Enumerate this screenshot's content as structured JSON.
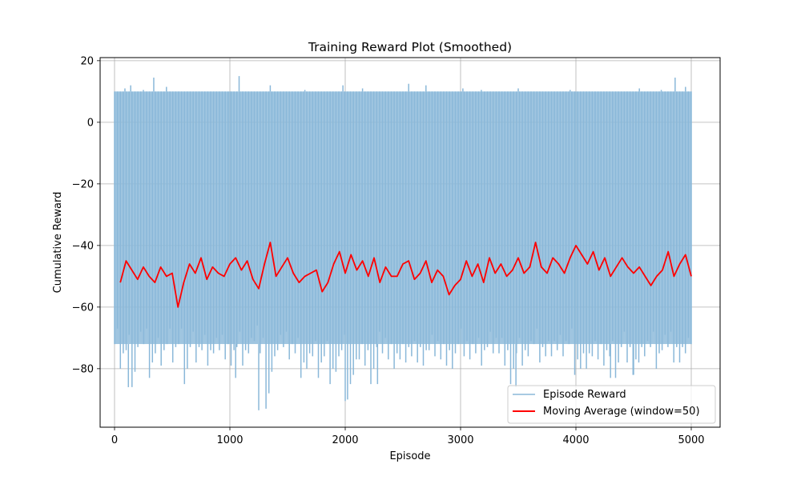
{
  "chart_data": {
    "type": "line",
    "title": "Training Reward Plot (Smoothed)",
    "xlabel": "Episode",
    "ylabel": "Cumulative Reward",
    "xlim": [
      -125,
      5250
    ],
    "ylim": [
      -99,
      21
    ],
    "xticks": [
      0,
      1000,
      2000,
      3000,
      4000,
      5000
    ],
    "yticks": [
      -80,
      -60,
      -40,
      -20,
      0,
      20
    ],
    "grid": true,
    "legend_position": "lower-right",
    "series": [
      {
        "name": "Episode Reward",
        "color": "#8ab8d9",
        "x_range": [
          0,
          5000
        ],
        "upper_values": [
          10,
          10,
          10,
          10,
          10,
          10,
          10,
          10,
          10,
          10,
          10,
          10,
          10,
          10,
          10,
          10,
          10,
          10,
          10,
          10,
          10,
          10,
          10,
          10,
          10,
          10,
          10,
          10,
          10,
          10,
          10,
          10,
          10,
          10,
          10,
          10,
          10,
          10,
          10,
          10,
          10,
          10,
          10,
          10,
          10,
          10,
          10,
          10,
          10,
          10,
          10,
          10,
          10,
          10,
          10,
          10,
          10,
          10,
          10,
          10,
          10,
          10,
          10,
          10,
          10,
          10,
          10,
          10,
          10,
          10,
          10,
          10,
          10,
          10,
          10,
          10,
          10,
          10,
          10,
          10,
          10,
          10,
          10,
          10,
          10,
          10,
          10,
          10,
          10,
          10,
          10,
          10,
          10,
          10,
          10,
          10,
          10,
          10,
          10,
          10
        ],
        "lower_values": [
          -72,
          -80,
          -74,
          -86,
          -73,
          -72,
          -83,
          -75,
          -79,
          -72,
          -78,
          -72,
          -85,
          -73,
          -78,
          -74,
          -79,
          -75,
          -74,
          -77,
          -79,
          -73,
          -79,
          -75,
          -71,
          -75,
          -93,
          -81,
          -74,
          -73,
          -77,
          -75,
          -83,
          -80,
          -76,
          -83,
          -76,
          -85,
          -81,
          -74,
          -90,
          -82,
          -77,
          -79,
          -85,
          -73,
          -75,
          -77,
          -80,
          -77,
          -78,
          -76,
          -78,
          -79,
          -74,
          -76,
          -77,
          -79,
          -80,
          -72,
          -76,
          -77,
          -75,
          -79,
          -73,
          -75,
          -75,
          -79,
          -85,
          -75,
          -79,
          -76,
          -72,
          -78,
          -76,
          -76,
          -74,
          -76,
          -72,
          -82,
          -80,
          -80,
          -76,
          -77,
          -79,
          -76,
          -83,
          -73,
          -78,
          -82,
          -78,
          -76,
          -73,
          -80,
          -74,
          -73,
          -78,
          -78,
          -75,
          -72
        ],
        "spikes": [
          [
            90,
            11
          ],
          [
            140,
            12
          ],
          [
            250,
            10.5
          ],
          [
            340,
            14.5
          ],
          [
            450,
            11.5
          ],
          [
            1080,
            15
          ],
          [
            1350,
            12
          ],
          [
            1650,
            10.5
          ],
          [
            1980,
            12
          ],
          [
            2150,
            11
          ],
          [
            2550,
            12.5
          ],
          [
            2700,
            12
          ],
          [
            3020,
            11
          ],
          [
            3180,
            10.5
          ],
          [
            3500,
            11
          ],
          [
            3950,
            10.5
          ],
          [
            4550,
            11
          ],
          [
            4740,
            10.5
          ],
          [
            4860,
            14.5
          ],
          [
            4950,
            11.5
          ]
        ],
        "dips": [
          [
            120,
            -86
          ],
          [
            1050,
            -83
          ],
          [
            1250,
            -93.5
          ],
          [
            2000,
            -90.5
          ],
          [
            2280,
            -85
          ],
          [
            3480,
            -86
          ],
          [
            4300,
            -83
          ],
          [
            4500,
            -82
          ]
        ]
      },
      {
        "name": "Moving Average (window=50)",
        "color": "#ff0000",
        "x": [
          50,
          100,
          150,
          200,
          250,
          300,
          350,
          400,
          450,
          500,
          550,
          600,
          650,
          700,
          750,
          800,
          850,
          900,
          950,
          1000,
          1050,
          1100,
          1150,
          1200,
          1250,
          1300,
          1350,
          1400,
          1450,
          1500,
          1550,
          1600,
          1650,
          1700,
          1750,
          1800,
          1850,
          1900,
          1950,
          2000,
          2050,
          2100,
          2150,
          2200,
          2250,
          2300,
          2350,
          2400,
          2450,
          2500,
          2550,
          2600,
          2650,
          2700,
          2750,
          2800,
          2850,
          2900,
          2950,
          3000,
          3050,
          3100,
          3150,
          3200,
          3250,
          3300,
          3350,
          3400,
          3450,
          3500,
          3550,
          3600,
          3650,
          3700,
          3750,
          3800,
          3850,
          3900,
          3950,
          4000,
          4050,
          4100,
          4150,
          4200,
          4250,
          4300,
          4350,
          4400,
          4450,
          4500,
          4550,
          4600,
          4650,
          4700,
          4750,
          4800,
          4850,
          4900,
          4950,
          5000
        ],
        "values": [
          -52,
          -45,
          -48,
          -51,
          -47,
          -50,
          -52,
          -47,
          -50,
          -49,
          -60,
          -52,
          -46,
          -49,
          -44,
          -51,
          -47,
          -49,
          -50,
          -46,
          -44,
          -48,
          -45,
          -51,
          -54,
          -46,
          -39,
          -50,
          -47,
          -44,
          -49,
          -52,
          -50,
          -49,
          -48,
          -55,
          -52,
          -46,
          -42,
          -49,
          -43,
          -48,
          -45,
          -50,
          -44,
          -52,
          -47,
          -50,
          -50,
          -46,
          -45,
          -51,
          -49,
          -45,
          -52,
          -48,
          -50,
          -56,
          -53,
          -51,
          -45,
          -50,
          -46,
          -52,
          -44,
          -49,
          -46,
          -50,
          -48,
          -44,
          -49,
          -47,
          -39,
          -47,
          -49,
          -44,
          -46,
          -49,
          -44,
          -40,
          -43,
          -46,
          -42,
          -48,
          -44,
          -50,
          -47,
          -44,
          -47,
          -49,
          -47,
          -50,
          -53,
          -50,
          -48,
          -42,
          -50,
          -46,
          -43,
          -50
        ]
      }
    ]
  }
}
